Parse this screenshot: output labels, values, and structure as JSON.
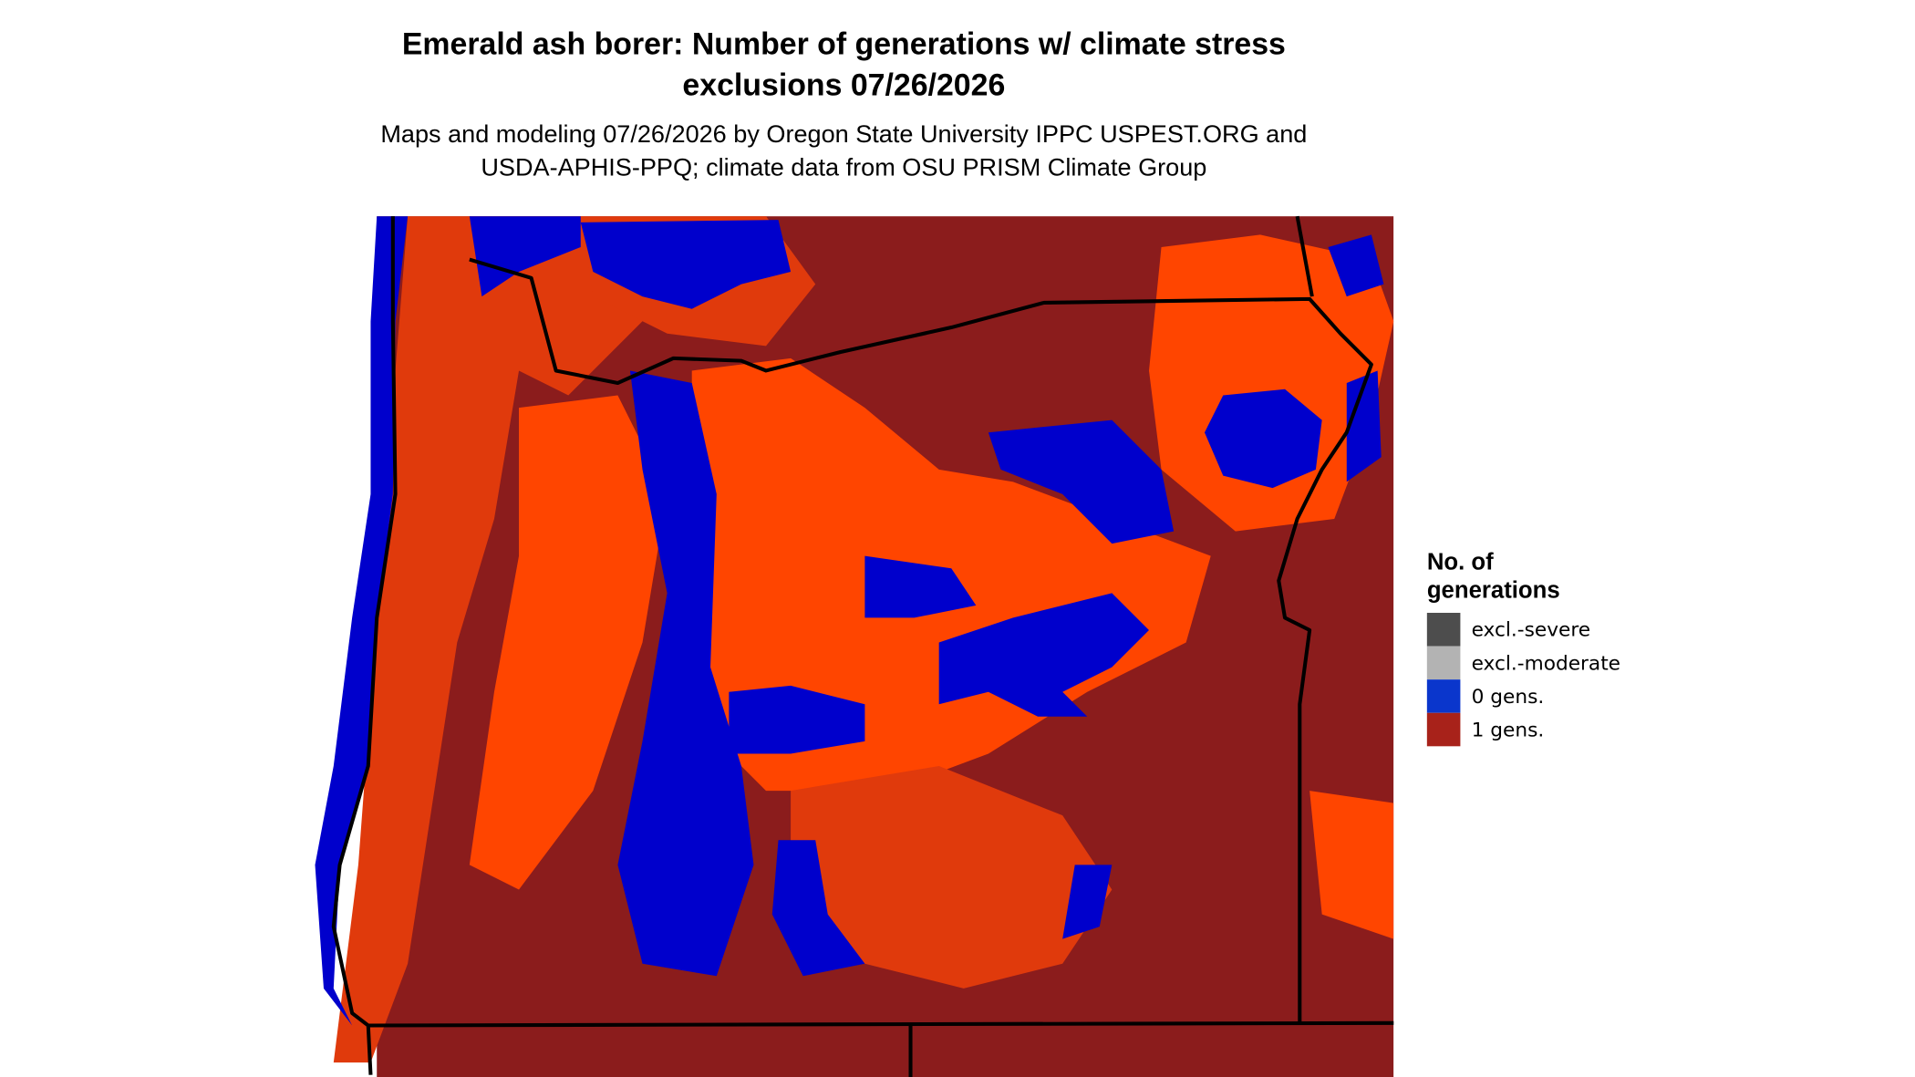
{
  "header": {
    "title": [
      "Emerald ash borer: Number of generations w/ climate stress",
      "exclusions 07/26/2026"
    ],
    "subtitle": [
      "Maps and modeling 07/26/2026 by Oregon State University IPPC USPEST.ORG and",
      "USDA-APHIS-PPQ; climate data from OSU PRISM Climate Group"
    ]
  },
  "legend": {
    "title": [
      "No. of",
      "generations"
    ],
    "items": [
      {
        "label": "excl.-severe",
        "color": "#4d4d4d"
      },
      {
        "label": "excl.-moderate",
        "color": "#b3b3b3"
      },
      {
        "label": "0 gens.",
        "color": "#0a36cc"
      },
      {
        "label": "1 gens.",
        "color": "#a8221a"
      }
    ]
  }
}
